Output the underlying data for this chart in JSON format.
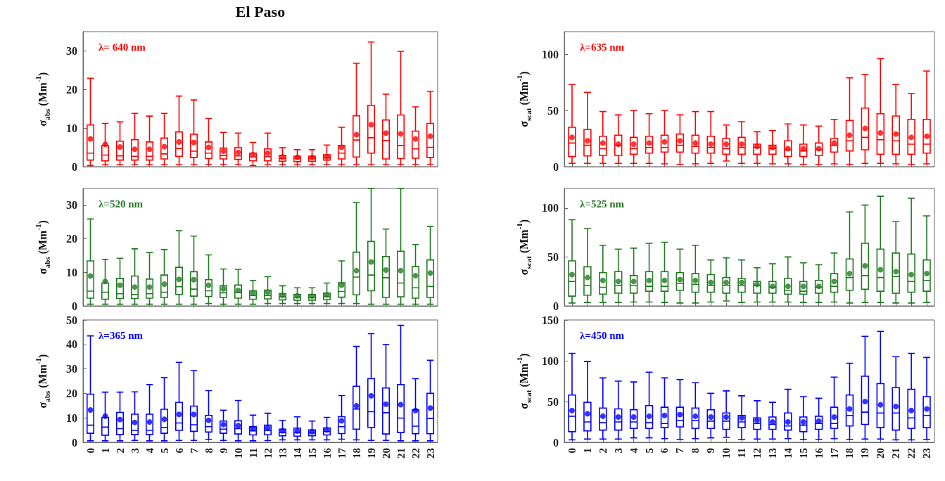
{
  "chart_data": [
    {
      "type": "box",
      "title": "El Paso",
      "ylabel": "σ$_{abs}$ (Mm$^{-1}$)",
      "annotations": [
        "λ= 640 nm"
      ],
      "categories": [
        "0",
        "1",
        "2",
        "3",
        "4",
        "5",
        "6",
        "7",
        "8",
        "9",
        "10",
        "11",
        "12",
        "13",
        "14",
        "15",
        "16",
        "17",
        "18",
        "19",
        "20",
        "21",
        "22",
        "23"
      ],
      "ylim": [
        0,
        35
      ],
      "yticks": [
        0,
        10,
        20,
        30
      ],
      "tick_labels": "y",
      "series": [
        {
          "color": "#ff0000",
          "boxes": [
            {
              "low": 0.3,
              "q1": 1.7,
              "median": 3.5,
              "q3": 10.8,
              "high": 22.9
            },
            {
              "low": 0.5,
              "q1": 1.5,
              "median": 3.0,
              "q3": 5.5,
              "high": 11.2
            },
            {
              "low": 0.5,
              "q1": 1.7,
              "median": 2.8,
              "q3": 6.6,
              "high": 11.6
            },
            {
              "low": 0.5,
              "q1": 1.7,
              "median": 2.7,
              "q3": 7.0,
              "high": 13.8
            },
            {
              "low": 0.5,
              "q1": 1.7,
              "median": 2.7,
              "q3": 6.4,
              "high": 13.1
            },
            {
              "low": 0.5,
              "q1": 2.0,
              "median": 3.3,
              "q3": 7.4,
              "high": 13.8
            },
            {
              "low": 0.5,
              "q1": 2.7,
              "median": 4.7,
              "q3": 9.0,
              "high": 18.3
            },
            {
              "low": 0.5,
              "q1": 2.4,
              "median": 4.0,
              "q3": 8.4,
              "high": 17.3
            },
            {
              "low": 0.5,
              "q1": 2.1,
              "median": 3.5,
              "q3": 6.4,
              "high": 12.5
            },
            {
              "low": 0.5,
              "q1": 2.0,
              "median": 2.9,
              "q3": 4.8,
              "high": 8.9
            },
            {
              "low": 0.5,
              "q1": 1.9,
              "median": 2.8,
              "q3": 4.9,
              "high": 8.7
            },
            {
              "low": 0.3,
              "q1": 1.5,
              "median": 2.5,
              "q3": 3.5,
              "high": 6.3
            },
            {
              "low": 0.5,
              "q1": 1.5,
              "median": 2.6,
              "q3": 4.6,
              "high": 8.7
            },
            {
              "low": 0.5,
              "q1": 1.4,
              "median": 2.1,
              "q3": 2.9,
              "high": 4.9
            },
            {
              "low": 0.5,
              "q1": 1.3,
              "median": 2.1,
              "q3": 2.7,
              "high": 4.4
            },
            {
              "low": 0.5,
              "q1": 1.4,
              "median": 2.1,
              "q3": 2.7,
              "high": 4.4
            },
            {
              "low": 0.5,
              "q1": 1.7,
              "median": 2.3,
              "q3": 3.1,
              "high": 5.6
            },
            {
              "low": 0.5,
              "q1": 2.0,
              "median": 3.5,
              "q3": 5.5,
              "high": 10.2
            },
            {
              "low": 0.5,
              "q1": 2.5,
              "median": 6.9,
              "q3": 13.2,
              "high": 26.8
            },
            {
              "low": 0.5,
              "q1": 3.5,
              "median": 7.5,
              "q3": 15.9,
              "high": 32.3
            },
            {
              "low": 0.5,
              "q1": 2.0,
              "median": 6.8,
              "q3": 12.1,
              "high": 18.8
            },
            {
              "low": 0.5,
              "q1": 2.1,
              "median": 5.5,
              "q3": 13.4,
              "high": 29.9
            },
            {
              "low": 0.5,
              "q1": 2.2,
              "median": 4.6,
              "q3": 9.2,
              "high": 15.5
            },
            {
              "low": 0.5,
              "q1": 2.4,
              "median": 5.0,
              "q3": 11.2,
              "high": 19.5
            }
          ]
        },
        {
          "type": "scatter",
          "color": "#ff0000",
          "x": [
            "0",
            "1",
            "2",
            "3",
            "4",
            "5",
            "6",
            "7",
            "8",
            "9",
            "10",
            "11",
            "12",
            "13",
            "14",
            "15",
            "16",
            "17",
            "18",
            "19",
            "20",
            "21",
            "22",
            "23"
          ],
          "values": [
            7.2,
            5.8,
            5.1,
            4.5,
            4.5,
            5.2,
            6.4,
            6.3,
            5.0,
            4.0,
            3.7,
            3.1,
            3.5,
            2.5,
            2.4,
            2.4,
            2.6,
            5.0,
            8.3,
            10.9,
            8.7,
            8.5,
            7.2,
            7.9
          ]
        }
      ]
    },
    {
      "type": "box",
      "ylabel": "σ$_{scat}$ (Mm$^{-1}$)",
      "annotations": [
        "λ=635 nm"
      ],
      "categories": [
        "0",
        "1",
        "2",
        "3",
        "4",
        "5",
        "6",
        "7",
        "8",
        "9",
        "10",
        "11",
        "12",
        "13",
        "14",
        "15",
        "16",
        "17",
        "18",
        "19",
        "20",
        "21",
        "22",
        "23"
      ],
      "ylim": [
        0,
        120
      ],
      "yticks": [
        0,
        50,
        100
      ],
      "tick_labels": "y",
      "series": [
        {
          "color": "#ff0000",
          "boxes": [
            {
              "low": 3,
              "q1": 9,
              "median": 21,
              "q3": 35,
              "high": 73
            },
            {
              "low": 3,
              "q1": 9.5,
              "median": 19,
              "q3": 33,
              "high": 66
            },
            {
              "low": 3,
              "q1": 10,
              "median": 16,
              "q3": 27,
              "high": 49
            },
            {
              "low": 3,
              "q1": 10,
              "median": 19,
              "q3": 28,
              "high": 46
            },
            {
              "low": 3,
              "q1": 11,
              "median": 16,
              "q3": 26,
              "high": 50
            },
            {
              "low": 3,
              "q1": 12,
              "median": 17,
              "q3": 27,
              "high": 47
            },
            {
              "low": 2.5,
              "q1": 13,
              "median": 17,
              "q3": 28,
              "high": 50
            },
            {
              "low": 2,
              "q1": 13,
              "median": 19,
              "q3": 29,
              "high": 46
            },
            {
              "low": 2.5,
              "q1": 12,
              "median": 18,
              "q3": 28,
              "high": 49
            },
            {
              "low": 3,
              "q1": 12,
              "median": 17,
              "q3": 27,
              "high": 49
            },
            {
              "low": 5,
              "q1": 11,
              "median": 16,
              "q3": 25,
              "high": 37
            },
            {
              "low": 3,
              "q1": 11,
              "median": 17,
              "q3": 26,
              "high": 40
            },
            {
              "low": 3,
              "q1": 11,
              "median": 17,
              "q3": 20,
              "high": 31
            },
            {
              "low": 2.5,
              "q1": 11,
              "median": 16,
              "q3": 19,
              "high": 32
            },
            {
              "low": 2.5,
              "q1": 9,
              "median": 15,
              "q3": 23,
              "high": 38
            },
            {
              "low": 2,
              "q1": 9,
              "median": 14,
              "q3": 20,
              "high": 37
            },
            {
              "low": 2,
              "q1": 10,
              "median": 15,
              "q3": 21,
              "high": 36
            },
            {
              "low": 2.5,
              "q1": 13,
              "median": 19,
              "q3": 25,
              "high": 42
            },
            {
              "low": 2,
              "q1": 14,
              "median": 23,
              "q3": 41,
              "high": 79
            },
            {
              "low": 3,
              "q1": 15,
              "median": 26,
              "q3": 52,
              "high": 82
            },
            {
              "low": 3,
              "q1": 11,
              "median": 24,
              "q3": 47,
              "high": 96
            },
            {
              "low": 2.5,
              "q1": 11,
              "median": 23,
              "q3": 45,
              "high": 73
            },
            {
              "low": 2,
              "q1": 11,
              "median": 20,
              "q3": 42,
              "high": 65
            },
            {
              "low": 2.5,
              "q1": 12,
              "median": 20,
              "q3": 42,
              "high": 85
            }
          ]
        },
        {
          "type": "scatter",
          "color": "#ff0000",
          "x": [
            "0",
            "1",
            "2",
            "3",
            "4",
            "5",
            "6",
            "7",
            "8",
            "9",
            "10",
            "11",
            "12",
            "13",
            "14",
            "15",
            "16",
            "17",
            "18",
            "19",
            "20",
            "21",
            "22",
            "23"
          ],
          "values": [
            26,
            23,
            21,
            20,
            20,
            21,
            22,
            23,
            21,
            20,
            20,
            20,
            18,
            17,
            16,
            16,
            16,
            21,
            28,
            34,
            30,
            29,
            26,
            27
          ]
        }
      ]
    },
    {
      "type": "box",
      "ylabel": "σ$_{abs}$ (Mm$^{-1}$)",
      "annotations": [
        "λ=520 nm"
      ],
      "categories": [
        "0",
        "1",
        "2",
        "3",
        "4",
        "5",
        "6",
        "7",
        "8",
        "9",
        "10",
        "11",
        "12",
        "13",
        "14",
        "15",
        "16",
        "17",
        "18",
        "19",
        "20",
        "21",
        "22",
        "23"
      ],
      "ylim": [
        0,
        35
      ],
      "yticks": [
        0,
        10,
        20,
        30
      ],
      "tick_labels": "y",
      "series": [
        {
          "color": "#217a21",
          "boxes": [
            {
              "low": 0.5,
              "q1": 2.3,
              "median": 4.4,
              "q3": 13.4,
              "high": 25.9
            },
            {
              "low": 0.5,
              "q1": 2.0,
              "median": 4.1,
              "q3": 6.8,
              "high": 13.9
            },
            {
              "low": 0.5,
              "q1": 2.2,
              "median": 3.6,
              "q3": 8.2,
              "high": 14.2
            },
            {
              "low": 0.5,
              "q1": 2.2,
              "median": 3.4,
              "q3": 8.9,
              "high": 17.0
            },
            {
              "low": 0.5,
              "q1": 2.3,
              "median": 3.6,
              "q3": 8.0,
              "high": 15.9
            },
            {
              "low": 0.5,
              "q1": 2.5,
              "median": 4.1,
              "q3": 9.2,
              "high": 16.8
            },
            {
              "low": 0.5,
              "q1": 3.4,
              "median": 5.7,
              "q3": 11.5,
              "high": 22.4
            },
            {
              "low": 0.5,
              "q1": 2.9,
              "median": 5.0,
              "q3": 10.2,
              "high": 20.8
            },
            {
              "low": 0.7,
              "q1": 2.8,
              "median": 4.5,
              "q3": 7.8,
              "high": 15.2
            },
            {
              "low": 0.5,
              "q1": 2.5,
              "median": 3.9,
              "q3": 6.0,
              "high": 11.0
            },
            {
              "low": 0.5,
              "q1": 2.3,
              "median": 4.0,
              "q3": 6.2,
              "high": 10.9
            },
            {
              "low": 0.5,
              "q1": 2.0,
              "median": 3.1,
              "q3": 4.5,
              "high": 7.6
            },
            {
              "low": 0.7,
              "q1": 2.1,
              "median": 3.1,
              "q3": 4.7,
              "high": 8.7
            },
            {
              "low": 0.7,
              "q1": 1.8,
              "median": 2.7,
              "q3": 3.6,
              "high": 6.0
            },
            {
              "low": 0.7,
              "q1": 1.7,
              "median": 2.6,
              "q3": 3.4,
              "high": 5.4
            },
            {
              "low": 0.7,
              "q1": 1.7,
              "median": 2.5,
              "q3": 3.4,
              "high": 5.4
            },
            {
              "low": 0.7,
              "q1": 1.9,
              "median": 2.8,
              "q3": 3.8,
              "high": 6.8
            },
            {
              "low": 0.7,
              "q1": 2.6,
              "median": 4.3,
              "q3": 6.9,
              "high": 13.4
            },
            {
              "low": 0.7,
              "q1": 3.3,
              "median": 8.6,
              "q3": 16.0,
              "high": 30.8
            },
            {
              "low": 0.5,
              "q1": 4.5,
              "median": 9.2,
              "q3": 19.2,
              "high": 35
            },
            {
              "low": 0.5,
              "q1": 2.5,
              "median": 8.4,
              "q3": 14.7,
              "high": 22.9
            },
            {
              "low": 0.5,
              "q1": 2.7,
              "median": 6.8,
              "q3": 16.3,
              "high": 35
            },
            {
              "low": 0.5,
              "q1": 2.3,
              "median": 5.4,
              "q3": 11.7,
              "high": 18.3
            },
            {
              "low": 0.5,
              "q1": 2.5,
              "median": 5.8,
              "q3": 13.7,
              "high": 23.7
            }
          ]
        },
        {
          "type": "scatter",
          "color": "#217a21",
          "x": [
            "0",
            "1",
            "2",
            "3",
            "4",
            "5",
            "6",
            "7",
            "8",
            "9",
            "10",
            "11",
            "12",
            "13",
            "14",
            "15",
            "16",
            "17",
            "18",
            "19",
            "20",
            "21",
            "22",
            "23"
          ],
          "values": [
            8.9,
            7.3,
            6.2,
            5.6,
            5.6,
            6.5,
            7.9,
            7.8,
            6.2,
            5.1,
            4.6,
            3.9,
            4.1,
            3.2,
            3.0,
            2.9,
            3.3,
            6.2,
            10.5,
            13.1,
            10.7,
            10.5,
            9.0,
            9.8
          ]
        }
      ]
    },
    {
      "type": "box",
      "ylabel": "σ$_{scat}$ (Mm$^{-1}$)",
      "annotations": [
        "λ=525 nm"
      ],
      "categories": [
        "0",
        "1",
        "2",
        "3",
        "4",
        "5",
        "6",
        "7",
        "8",
        "9",
        "10",
        "11",
        "12",
        "13",
        "14",
        "15",
        "16",
        "17",
        "18",
        "19",
        "20",
        "21",
        "22",
        "23"
      ],
      "ylim": [
        0,
        120
      ],
      "yticks": [
        0,
        50,
        100
      ],
      "tick_labels": "y",
      "series": [
        {
          "color": "#217a21",
          "boxes": [
            {
              "low": 3,
              "q1": 10,
              "median": 25,
              "q3": 46,
              "high": 88
            },
            {
              "low": 3.5,
              "q1": 11,
              "median": 21,
              "q3": 40,
              "high": 79
            },
            {
              "low": 3.5,
              "q1": 12,
              "median": 19,
              "q3": 34,
              "high": 62
            },
            {
              "low": 3.5,
              "q1": 13,
              "median": 21,
              "q3": 35,
              "high": 58
            },
            {
              "low": 4,
              "q1": 13,
              "median": 21,
              "q3": 31,
              "high": 59
            },
            {
              "low": 4,
              "q1": 15,
              "median": 20,
              "q3": 35,
              "high": 64
            },
            {
              "low": 3.5,
              "q1": 15,
              "median": 20,
              "q3": 35,
              "high": 65
            },
            {
              "low": 3,
              "q1": 16,
              "median": 23,
              "q3": 34,
              "high": 58
            },
            {
              "low": 3,
              "q1": 14,
              "median": 22,
              "q3": 33,
              "high": 62
            },
            {
              "low": 4,
              "q1": 14,
              "median": 21,
              "q3": 32,
              "high": 47
            },
            {
              "low": 5,
              "q1": 13,
              "median": 21,
              "q3": 29,
              "high": 49
            },
            {
              "low": 3.5,
              "q1": 14,
              "median": 21,
              "q3": 28,
              "high": 47
            },
            {
              "low": 4,
              "q1": 13,
              "median": 21,
              "q3": 25,
              "high": 39
            },
            {
              "low": 4,
              "q1": 13,
              "median": 19,
              "q3": 25,
              "high": 43
            },
            {
              "low": 4,
              "q1": 12,
              "median": 16,
              "q3": 28,
              "high": 50
            },
            {
              "low": 3.5,
              "q1": 12,
              "median": 15,
              "q3": 25,
              "high": 44
            },
            {
              "low": 3.5,
              "q1": 13,
              "median": 19,
              "q3": 26,
              "high": 42
            },
            {
              "low": 4,
              "q1": 14,
              "median": 20,
              "q3": 33,
              "high": 54
            },
            {
              "low": 3,
              "q1": 16,
              "median": 29,
              "q3": 48,
              "high": 96
            },
            {
              "low": 3.5,
              "q1": 17,
              "median": 31,
              "q3": 64,
              "high": 103
            },
            {
              "low": 3.5,
              "q1": 15,
              "median": 29,
              "q3": 58,
              "high": 112
            },
            {
              "low": 3,
              "q1": 13,
              "median": 30,
              "q3": 54,
              "high": 86
            },
            {
              "low": 3,
              "q1": 14,
              "median": 25,
              "q3": 53,
              "high": 110
            },
            {
              "low": 3.5,
              "q1": 15,
              "median": 26,
              "q3": 47,
              "high": 92
            }
          ]
        },
        {
          "type": "scatter",
          "color": "#217a21",
          "x": [
            "0",
            "1",
            "2",
            "3",
            "4",
            "5",
            "6",
            "7",
            "8",
            "9",
            "10",
            "11",
            "12",
            "13",
            "14",
            "15",
            "16",
            "17",
            "18",
            "19",
            "20",
            "21",
            "22",
            "23"
          ],
          "values": [
            32,
            29,
            26,
            25,
            25,
            26,
            26,
            27,
            26,
            24,
            24,
            24,
            22,
            20,
            20,
            20,
            20,
            25,
            33,
            41,
            37,
            35,
            32,
            33
          ]
        }
      ]
    },
    {
      "type": "box",
      "ylabel": "σ$_{abs}$ (Mm$^{-1}$)",
      "annotations": [
        "λ=365 nm"
      ],
      "categories": [
        "0",
        "1",
        "2",
        "3",
        "4",
        "5",
        "6",
        "7",
        "8",
        "9",
        "10",
        "11",
        "12",
        "13",
        "14",
        "15",
        "16",
        "17",
        "18",
        "19",
        "20",
        "21",
        "22",
        "23"
      ],
      "ylim": [
        0,
        50
      ],
      "yticks": [
        0,
        10,
        20,
        30,
        40,
        50
      ],
      "series": [
        {
          "color": "#0000ff",
          "boxes": [
            {
              "low": 0.6,
              "q1": 3.7,
              "median": 7.0,
              "q3": 19.7,
              "high": 43.5
            },
            {
              "low": 0.6,
              "q1": 2.9,
              "median": 6.2,
              "q3": 10.2,
              "high": 20.5
            },
            {
              "low": 0.6,
              "q1": 3.2,
              "median": 5.6,
              "q3": 12.2,
              "high": 20.5
            },
            {
              "low": 0.8,
              "q1": 3.2,
              "median": 4.9,
              "q3": 11.5,
              "high": 20.6
            },
            {
              "low": 0.6,
              "q1": 3.2,
              "median": 4.9,
              "q3": 11.5,
              "high": 23.6
            },
            {
              "low": 0.6,
              "q1": 3.7,
              "median": 6.1,
              "q3": 13.5,
              "high": 26.4
            },
            {
              "low": 0.8,
              "q1": 4.9,
              "median": 7.9,
              "q3": 16.3,
              "high": 32.7
            },
            {
              "low": 0.8,
              "q1": 4.5,
              "median": 7.2,
              "q3": 14.8,
              "high": 29.3
            },
            {
              "low": 1.2,
              "q1": 4.2,
              "median": 6.4,
              "q3": 11.0,
              "high": 21.1
            },
            {
              "low": 0.8,
              "q1": 3.7,
              "median": 5.4,
              "q3": 8.7,
              "high": 13.1
            },
            {
              "low": 0.6,
              "q1": 3.4,
              "median": 5.6,
              "q3": 8.8,
              "high": 17.1
            },
            {
              "low": 0.6,
              "q1": 3.0,
              "median": 4.7,
              "q3": 6.4,
              "high": 11.1
            },
            {
              "low": 0.7,
              "q1": 3.1,
              "median": 4.8,
              "q3": 7.0,
              "high": 11.9
            },
            {
              "low": 1.0,
              "q1": 2.7,
              "median": 4.0,
              "q3": 5.4,
              "high": 9.0
            },
            {
              "low": 1.0,
              "q1": 2.5,
              "median": 3.9,
              "q3": 5.8,
              "high": 10.4
            },
            {
              "low": 1.0,
              "q1": 2.7,
              "median": 3.8,
              "q3": 5.1,
              "high": 8.7
            },
            {
              "low": 1.0,
              "q1": 3.0,
              "median": 4.4,
              "q3": 5.9,
              "high": 10.2
            },
            {
              "low": 1.3,
              "q1": 3.6,
              "median": 6.4,
              "q3": 10.5,
              "high": 19.1
            },
            {
              "low": 1.0,
              "q1": 5.4,
              "median": 13.6,
              "q3": 22.9,
              "high": 39.2
            },
            {
              "low": 0.8,
              "q1": 6.1,
              "median": 12.5,
              "q3": 26.0,
              "high": 44.4
            },
            {
              "low": 0.8,
              "q1": 3.4,
              "median": 12.1,
              "q3": 22.2,
              "high": 40.0
            },
            {
              "low": 0.6,
              "q1": 4.0,
              "median": 9.9,
              "q3": 23.6,
              "high": 47.8
            },
            {
              "low": 0.6,
              "q1": 3.5,
              "median": 6.6,
              "q3": 13.3,
              "high": 26.0
            },
            {
              "low": 0.6,
              "q1": 3.5,
              "median": 9.8,
              "q3": 20.0,
              "high": 33.5
            }
          ]
        },
        {
          "type": "scatter",
          "color": "#0000ff",
          "x": [
            "0",
            "1",
            "2",
            "3",
            "4",
            "5",
            "6",
            "7",
            "8",
            "9",
            "10",
            "11",
            "12",
            "13",
            "14",
            "15",
            "16",
            "17",
            "18",
            "19",
            "20",
            "21",
            "22",
            "23"
          ],
          "values": [
            13.2,
            10.7,
            9.3,
            8.1,
            8.3,
            9.4,
            11.4,
            11.4,
            9.0,
            7.3,
            6.8,
            5.7,
            5.8,
            4.7,
            4.7,
            4.4,
            5.1,
            8.8,
            14.9,
            19.0,
            15.6,
            15.4,
            13.0,
            14.0
          ]
        }
      ]
    },
    {
      "type": "box",
      "ylabel": "σ$_{scat}$ (Mm$^{-1}$)",
      "annotations": [
        "λ=450 nm"
      ],
      "categories": [
        "0",
        "1",
        "2",
        "3",
        "4",
        "5",
        "6",
        "7",
        "8",
        "9",
        "10",
        "11",
        "12",
        "13",
        "14",
        "15",
        "16",
        "17",
        "18",
        "19",
        "20",
        "21",
        "22",
        "23"
      ],
      "ylim": [
        0,
        150
      ],
      "yticks": [
        0,
        50,
        100,
        150
      ],
      "series": [
        {
          "color": "#0000ff",
          "boxes": [
            {
              "low": 3,
              "q1": 13,
              "median": 32,
              "q3": 58,
              "high": 109
            },
            {
              "low": 4,
              "q1": 14,
              "median": 25,
              "q3": 49,
              "high": 99
            },
            {
              "low": 4,
              "q1": 15,
              "median": 24,
              "q3": 42,
              "high": 79
            },
            {
              "low": 4,
              "q1": 15,
              "median": 25,
              "q3": 41,
              "high": 75
            },
            {
              "low": 5.5,
              "q1": 17,
              "median": 25,
              "q3": 40,
              "high": 74
            },
            {
              "low": 5.5,
              "q1": 17,
              "median": 24,
              "q3": 45,
              "high": 86
            },
            {
              "low": 4.5,
              "q1": 18,
              "median": 23,
              "q3": 43,
              "high": 79
            },
            {
              "low": 3.5,
              "q1": 19,
              "median": 27,
              "q3": 43,
              "high": 77
            },
            {
              "low": 4.5,
              "q1": 17,
              "median": 27,
              "q3": 42,
              "high": 73
            },
            {
              "low": 5.5,
              "q1": 17,
              "median": 26,
              "q3": 40,
              "high": 60
            },
            {
              "low": 6,
              "q1": 16,
              "median": 26,
              "q3": 36,
              "high": 63
            },
            {
              "low": 3.5,
              "q1": 18,
              "median": 25,
              "q3": 33,
              "high": 57
            },
            {
              "low": 4,
              "q1": 16,
              "median": 23,
              "q3": 30,
              "high": 51
            },
            {
              "low": 4,
              "q1": 16,
              "median": 22,
              "q3": 31,
              "high": 49
            },
            {
              "low": 4.5,
              "q1": 15,
              "median": 20,
              "q3": 36,
              "high": 65
            },
            {
              "low": 3.5,
              "q1": 13,
              "median": 21,
              "q3": 31,
              "high": 56
            },
            {
              "low": 3.5,
              "q1": 16,
              "median": 23,
              "q3": 32,
              "high": 54
            },
            {
              "low": 4.5,
              "q1": 17,
              "median": 23,
              "q3": 43,
              "high": 80
            },
            {
              "low": 3.5,
              "q1": 20,
              "median": 33,
              "q3": 58,
              "high": 97
            },
            {
              "low": 4,
              "q1": 22,
              "median": 37,
              "q3": 81,
              "high": 130
            },
            {
              "low": 4,
              "q1": 18,
              "median": 36,
              "q3": 72,
              "high": 136
            },
            {
              "low": 3,
              "q1": 15,
              "median": 36,
              "q3": 67,
              "high": 105
            },
            {
              "low": 3,
              "q1": 17,
              "median": 30,
              "q3": 65,
              "high": 109
            },
            {
              "low": 3.5,
              "q1": 18,
              "median": 33,
              "q3": 56,
              "high": 104
            }
          ]
        },
        {
          "type": "scatter",
          "color": "#0000ff",
          "x": [
            "0",
            "1",
            "2",
            "3",
            "4",
            "5",
            "6",
            "7",
            "8",
            "9",
            "10",
            "11",
            "12",
            "13",
            "14",
            "15",
            "16",
            "17",
            "18",
            "19",
            "20",
            "21",
            "22",
            "23"
          ],
          "values": [
            39,
            35,
            32,
            31,
            31,
            32,
            33,
            34,
            32,
            31,
            31,
            30,
            27,
            25,
            25,
            25,
            26,
            31,
            41,
            50,
            46,
            44,
            39,
            41
          ]
        }
      ]
    }
  ]
}
